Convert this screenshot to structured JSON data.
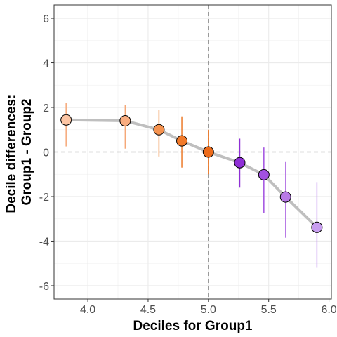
{
  "chart_data": {
    "type": "scatter",
    "title": "",
    "xlabel": "Deciles for Group1",
    "ylabel_lines": [
      "Decile differences:",
      "Group1 - Group2"
    ],
    "xlim": [
      3.72,
      6.02
    ],
    "ylim": [
      -6.6,
      6.6
    ],
    "x_ticks": [
      4.0,
      4.5,
      5.0,
      5.5,
      6.0
    ],
    "x_tick_labels": [
      "4.0",
      "4.5",
      "5.0",
      "5.5",
      "6.0"
    ],
    "y_ticks": [
      -6,
      -4,
      -2,
      0,
      2,
      4,
      6
    ],
    "y_tick_labels": [
      "-6",
      "-4",
      "-2",
      "0",
      "2",
      "4",
      "6"
    ],
    "grid": true,
    "reference_lines": {
      "x": 5.0,
      "y": 0
    },
    "points": [
      {
        "decile": 1,
        "x": 3.82,
        "y": 1.44,
        "lo": 0.25,
        "hi": 2.2,
        "fill": "#fcc5a4",
        "bar": "#f5a878"
      },
      {
        "decile": 2,
        "x": 4.31,
        "y": 1.4,
        "lo": 0.15,
        "hi": 2.1,
        "fill": "#f9ad80",
        "bar": "#f5a878"
      },
      {
        "decile": 3,
        "x": 4.59,
        "y": 1.0,
        "lo": -0.2,
        "hi": 1.9,
        "fill": "#f59350",
        "bar": "#f08a3e"
      },
      {
        "decile": 4,
        "x": 4.78,
        "y": 0.5,
        "lo": -0.7,
        "hi": 1.6,
        "fill": "#f27a2a",
        "bar": "#ec7a2a"
      },
      {
        "decile": 5,
        "x": 5.0,
        "y": 0.0,
        "lo": -1.0,
        "hi": 1.0,
        "fill": "#ec6b1b",
        "bar": "#ec7a2a"
      },
      {
        "decile": 6,
        "x": 5.26,
        "y": -0.48,
        "lo": -1.6,
        "hi": 0.6,
        "fill": "#8f2fd6",
        "bar": "#8f2fd6"
      },
      {
        "decile": 7,
        "x": 5.46,
        "y": -1.02,
        "lo": -2.75,
        "hi": 0.2,
        "fill": "#a150e0",
        "bar": "#a150e0"
      },
      {
        "decile": 8,
        "x": 5.64,
        "y": -2.02,
        "lo": -3.85,
        "hi": -0.45,
        "fill": "#b87ae6",
        "bar": "#b87ae6"
      },
      {
        "decile": 9,
        "x": 5.9,
        "y": -3.38,
        "lo": -5.2,
        "hi": -1.35,
        "fill": "#c89df0",
        "bar": "#c89df0"
      }
    ],
    "connector_color": "#bfbfbf"
  }
}
